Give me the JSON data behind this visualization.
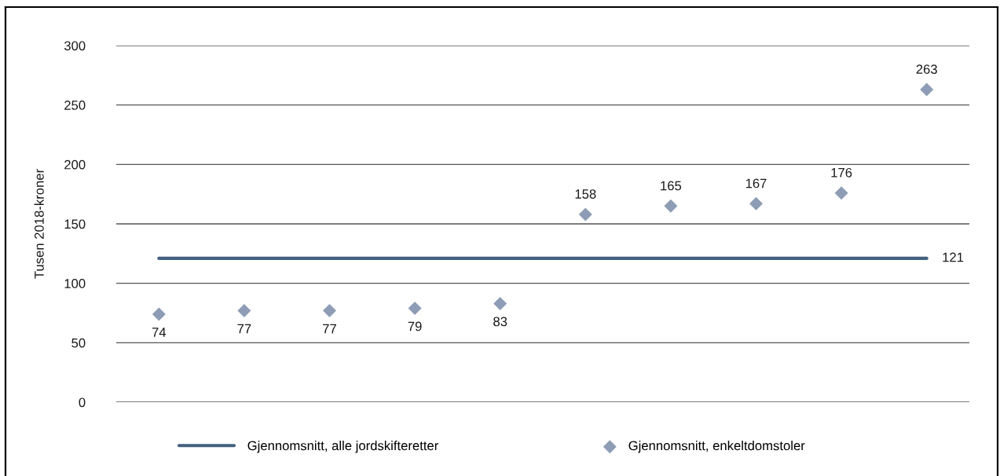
{
  "chart_data": {
    "type": "scatter",
    "categories": [
      null,
      null,
      null,
      null,
      null,
      null,
      null,
      null,
      null,
      null
    ],
    "ylabel": "Tusen 2018-kroner",
    "ylim": [
      0,
      300
    ],
    "yticks": [
      0,
      50,
      100,
      150,
      200,
      250,
      300
    ],
    "grid": "y",
    "legend": "bottom",
    "tick_labels": "y",
    "series": [
      {
        "name": "Gjennomsnitt, alle jordskifteretter",
        "type": "line",
        "color": "#44607f",
        "marker": "none",
        "values": [
          121,
          121,
          121,
          121,
          121,
          121,
          121,
          121,
          121,
          121
        ],
        "value_labels": [
          null,
          null,
          null,
          null,
          null,
          null,
          null,
          null,
          null,
          "121"
        ]
      },
      {
        "name": "Gjennomsnitt, enkeltdomstoler",
        "color": "#8e9db5",
        "marker": "diamond",
        "values": [
          74,
          77,
          77,
          79,
          83,
          158,
          165,
          167,
          176,
          263
        ],
        "data_labels": true
      }
    ]
  }
}
